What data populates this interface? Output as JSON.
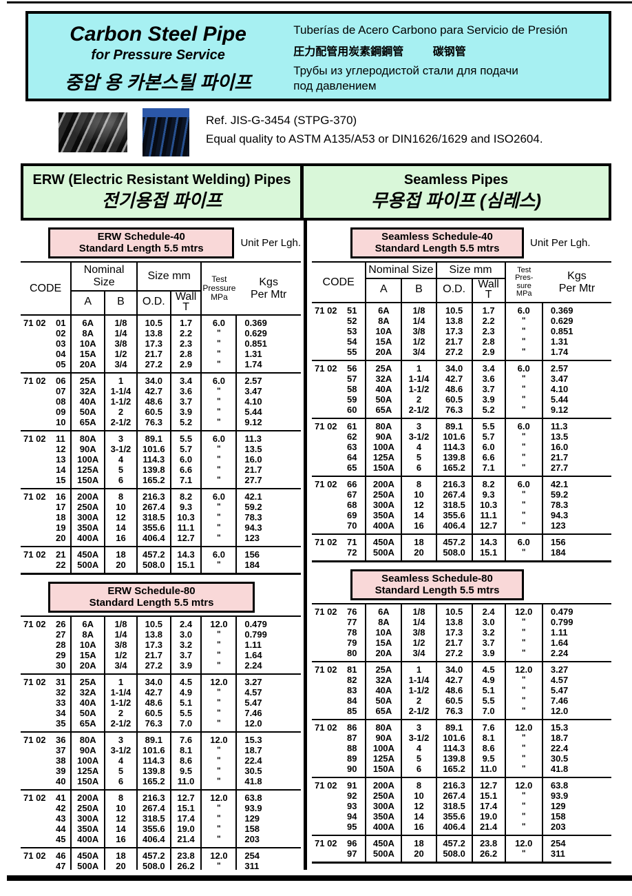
{
  "colors": {
    "header_bg": "#a7f0f2",
    "section_banner_bg": "#d9f7d9",
    "schedule_banner_bg": "#f9d8d8",
    "rule_color": "#000000"
  },
  "header": {
    "title_en": "Carbon Steel Pipe",
    "subtitle_en": "for Pressure Service",
    "title_ko": "중압 용 카본스틸 파이프",
    "title_es": "Tuberías de Acero Carbono para Servicio de Presión",
    "title_ja": "圧力配管用炭素鋼鋼管",
    "title_zh": "碳钢管",
    "title_ru": "Трубы из углеродистой стали для подачи\nпод давлением"
  },
  "reference": {
    "line1": "Ref. JIS-G-3454 (STPG-370)",
    "line2": "Equal quality to ASTM A135/A53 or DIN1626/1629 and ISO2604."
  },
  "sections": [
    {
      "title_en": "ERW (Electric Resistant Welding) Pipes",
      "title_local": "전기용접 파이프"
    },
    {
      "title_en": "Seamless Pipes",
      "title_local": "무용접 파이프 (심레스)"
    }
  ],
  "table_columns": {
    "code": "CODE",
    "nominal_size": "Nominal Size",
    "size_mm": "Size mm",
    "a": "A",
    "b": "B",
    "od": "O.D.",
    "wall_t": "Wall\nT",
    "test_pressure": "Test\nPressure\nMPa",
    "test_pressure_narrow": "Test\nPres-\nsure\nMPa",
    "kgs_per_mtr": "Kgs\nPer Mtr"
  },
  "tables": [
    {
      "id": "erw-schedule-40",
      "side": "left",
      "has_header": true,
      "narrow_test_header": false,
      "banner_title": "ERW Schedule-40",
      "banner_subtitle": "Standard Length 5.5 mtrs",
      "unit_label": "Unit Per Lgh.",
      "groups": [
        {
          "code_prefix": "71 02",
          "rows": [
            [
              "01",
              "6A",
              "1/8",
              "10.5",
              "1.7",
              "6.0",
              "0.369"
            ],
            [
              "02",
              "8A",
              "1/4",
              "13.8",
              "2.2",
              "\"",
              "0.629"
            ],
            [
              "03",
              "10A",
              "3/8",
              "17.3",
              "2.3",
              "\"",
              "0.851"
            ],
            [
              "04",
              "15A",
              "1/2",
              "21.7",
              "2.8",
              "\"",
              "1.31"
            ],
            [
              "05",
              "20A",
              "3/4",
              "27.2",
              "2.9",
              "\"",
              "1.74"
            ]
          ]
        },
        {
          "code_prefix": "71 02",
          "rows": [
            [
              "06",
              "25A",
              "1",
              "34.0",
              "3.4",
              "6.0",
              "2.57"
            ],
            [
              "07",
              "32A",
              "1-1/4",
              "42.7",
              "3.6",
              "\"",
              "3.47"
            ],
            [
              "08",
              "40A",
              "1-1/2",
              "48.6",
              "3.7",
              "\"",
              "4.10"
            ],
            [
              "09",
              "50A",
              "2",
              "60.5",
              "3.9",
              "\"",
              "5.44"
            ],
            [
              "10",
              "65A",
              "2-1/2",
              "76.3",
              "5.2",
              "\"",
              "9.12"
            ]
          ]
        },
        {
          "code_prefix": "71 02",
          "rows": [
            [
              "11",
              "80A",
              "3",
              "89.1",
              "5.5",
              "6.0",
              "11.3"
            ],
            [
              "12",
              "90A",
              "3-1/2",
              "101.6",
              "5.7",
              "\"",
              "13.5"
            ],
            [
              "13",
              "100A",
              "4",
              "114.3",
              "6.0",
              "\"",
              "16.0"
            ],
            [
              "14",
              "125A",
              "5",
              "139.8",
              "6.6",
              "\"",
              "21.7"
            ],
            [
              "15",
              "150A",
              "6",
              "165.2",
              "7.1",
              "\"",
              "27.7"
            ]
          ]
        },
        {
          "code_prefix": "71 02",
          "rows": [
            [
              "16",
              "200A",
              "8",
              "216.3",
              "8.2",
              "6.0",
              "42.1"
            ],
            [
              "17",
              "250A",
              "10",
              "267.4",
              "9.3",
              "\"",
              "59.2"
            ],
            [
              "18",
              "300A",
              "12",
              "318.5",
              "10.3",
              "\"",
              "78.3"
            ],
            [
              "19",
              "350A",
              "14",
              "355.6",
              "11.1",
              "\"",
              "94.3"
            ],
            [
              "20",
              "400A",
              "16",
              "406.4",
              "12.7",
              "\"",
              "123"
            ]
          ]
        },
        {
          "code_prefix": "71 02",
          "rows": [
            [
              "21",
              "450A",
              "18",
              "457.2",
              "14.3",
              "6.0",
              "156"
            ],
            [
              "22",
              "500A",
              "20",
              "508.0",
              "15.1",
              "\"",
              "184"
            ]
          ]
        }
      ]
    },
    {
      "id": "seamless-schedule-40",
      "side": "right",
      "has_header": true,
      "narrow_test_header": true,
      "banner_title": "Seamless Schedule-40",
      "banner_subtitle": "Standard Length 5.5 mtrs",
      "unit_label": "Unit Per Lgh.",
      "groups": [
        {
          "code_prefix": "71 02",
          "rows": [
            [
              "51",
              "6A",
              "1/8",
              "10.5",
              "1.7",
              "6.0",
              "0.369"
            ],
            [
              "52",
              "8A",
              "1/4",
              "13.8",
              "2.2",
              "\"",
              "0.629"
            ],
            [
              "53",
              "10A",
              "3/8",
              "17.3",
              "2.3",
              "\"",
              "0.851"
            ],
            [
              "54",
              "15A",
              "1/2",
              "21.7",
              "2.8",
              "\"",
              "1.31"
            ],
            [
              "55",
              "20A",
              "3/4",
              "27.2",
              "2.9",
              "\"",
              "1.74"
            ]
          ]
        },
        {
          "code_prefix": "71 02",
          "rows": [
            [
              "56",
              "25A",
              "1",
              "34.0",
              "3.4",
              "6.0",
              "2.57"
            ],
            [
              "57",
              "32A",
              "1-1/4",
              "42.7",
              "3.6",
              "\"",
              "3.47"
            ],
            [
              "58",
              "40A",
              "1-1/2",
              "48.6",
              "3.7",
              "\"",
              "4.10"
            ],
            [
              "59",
              "50A",
              "2",
              "60.5",
              "3.9",
              "\"",
              "5.44"
            ],
            [
              "60",
              "65A",
              "2-1/2",
              "76.3",
              "5.2",
              "\"",
              "9.12"
            ]
          ]
        },
        {
          "code_prefix": "71 02",
          "rows": [
            [
              "61",
              "80A",
              "3",
              "89.1",
              "5.5",
              "6.0",
              "11.3"
            ],
            [
              "62",
              "90A",
              "3-1/2",
              "101.6",
              "5.7",
              "\"",
              "13.5"
            ],
            [
              "63",
              "100A",
              "4",
              "114.3",
              "6.0",
              "\"",
              "16.0"
            ],
            [
              "64",
              "125A",
              "5",
              "139.8",
              "6.6",
              "\"",
              "21.7"
            ],
            [
              "65",
              "150A",
              "6",
              "165.2",
              "7.1",
              "\"",
              "27.7"
            ]
          ]
        },
        {
          "code_prefix": "71 02",
          "rows": [
            [
              "66",
              "200A",
              "8",
              "216.3",
              "8.2",
              "6.0",
              "42.1"
            ],
            [
              "67",
              "250A",
              "10",
              "267.4",
              "9.3",
              "\"",
              "59.2"
            ],
            [
              "68",
              "300A",
              "12",
              "318.5",
              "10.3",
              "\"",
              "78.3"
            ],
            [
              "69",
              "350A",
              "14",
              "355.6",
              "11.1",
              "\"",
              "94.3"
            ],
            [
              "70",
              "400A",
              "16",
              "406.4",
              "12.7",
              "\"",
              "123"
            ]
          ]
        },
        {
          "code_prefix": "71 02",
          "rows": [
            [
              "71",
              "450A",
              "18",
              "457.2",
              "14.3",
              "6.0",
              "156"
            ],
            [
              "72",
              "500A",
              "20",
              "508.0",
              "15.1",
              "\"",
              "184"
            ]
          ]
        }
      ]
    },
    {
      "id": "erw-schedule-80",
      "side": "left",
      "has_header": false,
      "narrow_test_header": false,
      "banner_title": "ERW Schedule-80",
      "banner_subtitle": "Standard Length 5.5 mtrs",
      "unit_label": "",
      "groups": [
        {
          "code_prefix": "71 02",
          "rows": [
            [
              "26",
              "6A",
              "1/8",
              "10.5",
              "2.4",
              "12.0",
              "0.479"
            ],
            [
              "27",
              "8A",
              "1/4",
              "13.8",
              "3.0",
              "\"",
              "0.799"
            ],
            [
              "28",
              "10A",
              "3/8",
              "17.3",
              "3.2",
              "\"",
              "1.11"
            ],
            [
              "29",
              "15A",
              "1/2",
              "21.7",
              "3.7",
              "\"",
              "1.64"
            ],
            [
              "30",
              "20A",
              "3/4",
              "27.2",
              "3.9",
              "\"",
              "2.24"
            ]
          ]
        },
        {
          "code_prefix": "71 02",
          "rows": [
            [
              "31",
              "25A",
              "1",
              "34.0",
              "4.5",
              "12.0",
              "3.27"
            ],
            [
              "32",
              "32A",
              "1-1/4",
              "42.7",
              "4.9",
              "\"",
              "4.57"
            ],
            [
              "33",
              "40A",
              "1-1/2",
              "48.6",
              "5.1",
              "\"",
              "5.47"
            ],
            [
              "34",
              "50A",
              "2",
              "60.5",
              "5.5",
              "\"",
              "7.46"
            ],
            [
              "35",
              "65A",
              "2-1/2",
              "76.3",
              "7.0",
              "\"",
              "12.0"
            ]
          ]
        },
        {
          "code_prefix": "71 02",
          "rows": [
            [
              "36",
              "80A",
              "3",
              "89.1",
              "7.6",
              "12.0",
              "15.3"
            ],
            [
              "37",
              "90A",
              "3-1/2",
              "101.6",
              "8.1",
              "\"",
              "18.7"
            ],
            [
              "38",
              "100A",
              "4",
              "114.3",
              "8.6",
              "\"",
              "22.4"
            ],
            [
              "39",
              "125A",
              "5",
              "139.8",
              "9.5",
              "\"",
              "30.5"
            ],
            [
              "40",
              "150A",
              "6",
              "165.2",
              "11.0",
              "\"",
              "41.8"
            ]
          ]
        },
        {
          "code_prefix": "71 02",
          "rows": [
            [
              "41",
              "200A",
              "8",
              "216.3",
              "12.7",
              "12.0",
              "63.8"
            ],
            [
              "42",
              "250A",
              "10",
              "267.4",
              "15.1",
              "\"",
              "93.9"
            ],
            [
              "43",
              "300A",
              "12",
              "318.5",
              "17.4",
              "\"",
              "129"
            ],
            [
              "44",
              "350A",
              "14",
              "355.6",
              "19.0",
              "\"",
              "158"
            ],
            [
              "45",
              "400A",
              "16",
              "406.4",
              "21.4",
              "\"",
              "203"
            ]
          ]
        },
        {
          "code_prefix": "71 02",
          "rows": [
            [
              "46",
              "450A",
              "18",
              "457.2",
              "23.8",
              "12.0",
              "254"
            ],
            [
              "47",
              "500A",
              "20",
              "508.0",
              "26.2",
              "\"",
              "311"
            ]
          ]
        }
      ]
    },
    {
      "id": "seamless-schedule-80",
      "side": "right",
      "has_header": false,
      "narrow_test_header": true,
      "banner_title": "Seamless Schedule-80",
      "banner_subtitle": "Standard Length 5.5 mtrs",
      "unit_label": "",
      "groups": [
        {
          "code_prefix": "71 02",
          "rows": [
            [
              "76",
              "6A",
              "1/8",
              "10.5",
              "2.4",
              "12.0",
              "0.479"
            ],
            [
              "77",
              "8A",
              "1/4",
              "13.8",
              "3.0",
              "\"",
              "0.799"
            ],
            [
              "78",
              "10A",
              "3/8",
              "17.3",
              "3.2",
              "\"",
              "1.11"
            ],
            [
              "79",
              "15A",
              "1/2",
              "21.7",
              "3.7",
              "\"",
              "1.64"
            ],
            [
              "80",
              "20A",
              "3/4",
              "27.2",
              "3.9",
              "\"",
              "2.24"
            ]
          ]
        },
        {
          "code_prefix": "71 02",
          "rows": [
            [
              "81",
              "25A",
              "1",
              "34.0",
              "4.5",
              "12.0",
              "3.27"
            ],
            [
              "82",
              "32A",
              "1-1/4",
              "42.7",
              "4.9",
              "\"",
              "4.57"
            ],
            [
              "83",
              "40A",
              "1-1/2",
              "48.6",
              "5.1",
              "\"",
              "5.47"
            ],
            [
              "84",
              "50A",
              "2",
              "60.5",
              "5.5",
              "\"",
              "7.46"
            ],
            [
              "85",
              "65A",
              "2-1/2",
              "76.3",
              "7.0",
              "\"",
              "12.0"
            ]
          ]
        },
        {
          "code_prefix": "71 02",
          "rows": [
            [
              "86",
              "80A",
              "3",
              "89.1",
              "7.6",
              "12.0",
              "15.3"
            ],
            [
              "87",
              "90A",
              "3-1/2",
              "101.6",
              "8.1",
              "\"",
              "18.7"
            ],
            [
              "88",
              "100A",
              "4",
              "114.3",
              "8.6",
              "\"",
              "22.4"
            ],
            [
              "89",
              "125A",
              "5",
              "139.8",
              "9.5",
              "\"",
              "30.5"
            ],
            [
              "90",
              "150A",
              "6",
              "165.2",
              "11.0",
              "\"",
              "41.8"
            ]
          ]
        },
        {
          "code_prefix": "71 02",
          "rows": [
            [
              "91",
              "200A",
              "8",
              "216.3",
              "12.7",
              "12.0",
              "63.8"
            ],
            [
              "92",
              "250A",
              "10",
              "267.4",
              "15.1",
              "\"",
              "93.9"
            ],
            [
              "93",
              "300A",
              "12",
              "318.5",
              "17.4",
              "\"",
              "129"
            ],
            [
              "94",
              "350A",
              "14",
              "355.6",
              "19.0",
              "\"",
              "158"
            ],
            [
              "95",
              "400A",
              "16",
              "406.4",
              "21.4",
              "\"",
              "203"
            ]
          ]
        },
        {
          "code_prefix": "71 02",
          "rows": [
            [
              "96",
              "450A",
              "18",
              "457.2",
              "23.8",
              "12.0",
              "254"
            ],
            [
              "97",
              "500A",
              "20",
              "508.0",
              "26.2",
              "\"",
              "311"
            ]
          ]
        }
      ]
    }
  ]
}
